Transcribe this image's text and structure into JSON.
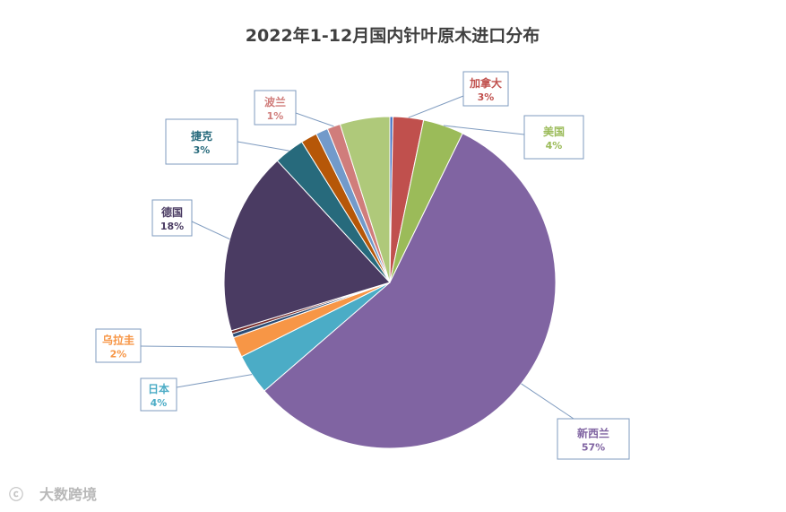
{
  "chart_data": {
    "type": "pie",
    "title": "2022年1-12月国内针叶原木进口分布",
    "start_angle_deg": 0,
    "direction": "clockwise",
    "slices": [
      {
        "label": "",
        "value": 0.3,
        "color": "#4472c4",
        "labeled": false
      },
      {
        "label": "加拿大",
        "pct_label": "3%",
        "value": 3,
        "color": "#c0504d",
        "labeled": true
      },
      {
        "label": "美国",
        "pct_label": "4%",
        "value": 4,
        "color": "#9bbb59",
        "labeled": true
      },
      {
        "label": "新西兰",
        "pct_label": "57%",
        "value": 57,
        "color": "#8064a2",
        "labeled": true
      },
      {
        "label": "日本",
        "pct_label": "4%",
        "value": 4,
        "color": "#4bacc6",
        "labeled": true
      },
      {
        "label": "乌拉圭",
        "pct_label": "2%",
        "value": 2,
        "color": "#f79646",
        "labeled": true
      },
      {
        "label": "",
        "value": 0.4,
        "color": "#2c4d75",
        "labeled": false
      },
      {
        "label": "",
        "value": 0.3,
        "color": "#772c2a",
        "labeled": false
      },
      {
        "label": "德国",
        "pct_label": "18%",
        "value": 18,
        "color": "#4a3b62",
        "labeled": true
      },
      {
        "label": "捷克",
        "pct_label": "3%",
        "value": 3,
        "color": "#276a7c",
        "labeled": true
      },
      {
        "label": "",
        "value": 1.6,
        "color": "#b65708",
        "labeled": false
      },
      {
        "label": "",
        "value": 1.2,
        "color": "#729aca",
        "labeled": false
      },
      {
        "label": "波兰",
        "pct_label": "1%",
        "value": 1.3,
        "color": "#d07d7b",
        "labeled": true
      },
      {
        "label": "",
        "value": 4.9,
        "color": "#afc97a",
        "labeled": false
      }
    ]
  },
  "watermark": {
    "text": "大数跨境"
  }
}
